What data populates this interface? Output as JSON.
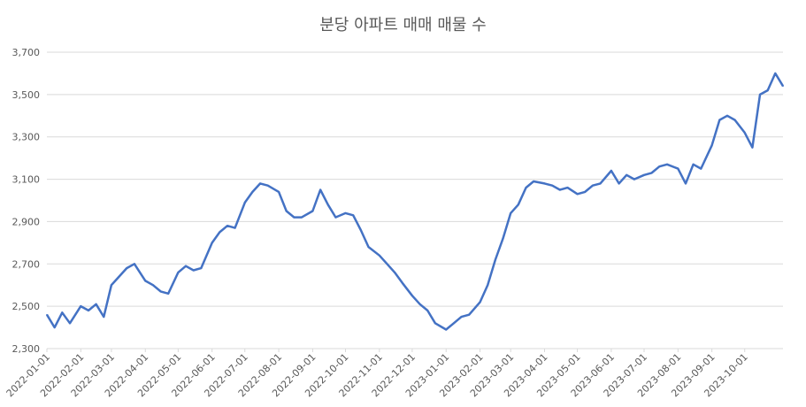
{
  "chart_data": {
    "type": "line",
    "title": "분당 아파트 매매 매물 수",
    "xlabel": "",
    "ylabel": "",
    "ylim": [
      2300,
      3700
    ],
    "y_ticks": [
      "2,300",
      "2,500",
      "2,700",
      "2,900",
      "3,100",
      "3,300",
      "3,500",
      "3,700"
    ],
    "x_tick_labels": [
      "2022-01-01",
      "2022-02-01",
      "2022-03-01",
      "2022-04-01",
      "2022-05-01",
      "2022-06-01",
      "2022-07-01",
      "2022-08-01",
      "2022-09-01",
      "2022-10-01",
      "2022-11-01",
      "2022-12-01",
      "2023-01-01",
      "2023-02-01",
      "2023-03-01",
      "2023-04-01",
      "2023-05-01",
      "2023-06-01",
      "2023-07-01",
      "2023-08-01",
      "2023-09-01",
      "2023-10-01"
    ],
    "grid": "horizontal",
    "legend": "none",
    "line_color": "#4472C4",
    "series": [
      {
        "x": [
          "2022-01-01",
          "2022-01-08",
          "2022-01-15",
          "2022-01-22",
          "2022-02-01",
          "2022-02-08",
          "2022-02-15",
          "2022-02-22",
          "2022-03-01",
          "2022-03-08",
          "2022-03-15",
          "2022-03-22",
          "2022-04-01",
          "2022-04-08",
          "2022-04-15",
          "2022-04-22",
          "2022-05-01",
          "2022-05-08",
          "2022-05-15",
          "2022-05-22",
          "2022-06-01",
          "2022-06-08",
          "2022-06-15",
          "2022-06-22",
          "2022-07-01",
          "2022-07-08",
          "2022-07-15",
          "2022-07-22",
          "2022-08-01",
          "2022-08-08",
          "2022-08-15",
          "2022-08-22",
          "2022-09-01",
          "2022-09-08",
          "2022-09-15",
          "2022-09-22",
          "2022-10-01",
          "2022-10-08",
          "2022-10-15",
          "2022-10-22",
          "2022-11-01",
          "2022-11-08",
          "2022-11-15",
          "2022-11-22",
          "2022-12-01",
          "2022-12-08",
          "2022-12-15",
          "2022-12-22",
          "2023-01-01",
          "2023-01-08",
          "2023-01-15",
          "2023-01-22",
          "2023-02-01",
          "2023-02-08",
          "2023-02-15",
          "2023-02-22",
          "2023-03-01",
          "2023-03-08",
          "2023-03-15",
          "2023-03-22",
          "2023-04-01",
          "2023-04-08",
          "2023-04-15",
          "2023-04-22",
          "2023-05-01",
          "2023-05-08",
          "2023-05-15",
          "2023-05-22",
          "2023-06-01",
          "2023-06-08",
          "2023-06-15",
          "2023-06-22",
          "2023-07-01",
          "2023-07-08",
          "2023-07-15",
          "2023-07-22",
          "2023-08-01",
          "2023-08-08",
          "2023-08-15",
          "2023-08-22",
          "2023-09-01",
          "2023-09-08",
          "2023-09-15",
          "2023-09-22",
          "2023-10-01",
          "2023-10-08",
          "2023-10-15",
          "2023-10-22",
          "2023-10-29",
          "2023-11-05"
        ],
        "values": [
          2460,
          2400,
          2470,
          2420,
          2500,
          2480,
          2510,
          2450,
          2600,
          2640,
          2680,
          2700,
          2620,
          2600,
          2570,
          2560,
          2660,
          2690,
          2670,
          2680,
          2800,
          2850,
          2880,
          2870,
          2990,
          3040,
          3080,
          3070,
          3040,
          2950,
          2920,
          2920,
          2950,
          3050,
          2980,
          2920,
          2940,
          2930,
          2860,
          2780,
          2740,
          2700,
          2660,
          2610,
          2550,
          2510,
          2480,
          2420,
          2390,
          2420,
          2450,
          2460,
          2520,
          2600,
          2720,
          2820,
          2940,
          2980,
          3060,
          3090,
          3080,
          3070,
          3050,
          3060,
          3030,
          3040,
          3070,
          3080,
          3140,
          3080,
          3120,
          3100,
          3120,
          3130,
          3160,
          3170,
          3150,
          3080,
          3170,
          3150,
          3260,
          3380,
          3400,
          3380,
          3320,
          3250,
          3500,
          3520,
          3600,
          3540
        ]
      }
    ]
  }
}
